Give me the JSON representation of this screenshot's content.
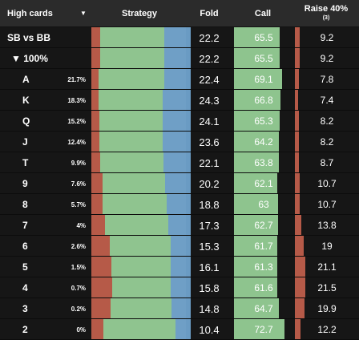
{
  "header": {
    "col1": "High cards",
    "col1_icon": "chevron-down-icon",
    "col2": "Strategy",
    "col3": "Fold",
    "col4": "Call",
    "col5": "Raise 40%",
    "col5_sub": "(3)"
  },
  "colors": {
    "raise": "#b65a48",
    "call": "#8fc48f",
    "fold": "#6f9fc6",
    "header_bg": "#2b2b2b",
    "page_bg": "#161616"
  },
  "summary_rows": [
    {
      "label": "SB vs BB",
      "fold": "22.2",
      "call": "65.5",
      "raise": "9.2"
    },
    {
      "label": "▼ 100%",
      "fold": "22.2",
      "call": "65.5",
      "raise": "9.2"
    }
  ],
  "rows": [
    {
      "card": "A",
      "pct": "21.7%",
      "fold": "22.4",
      "call": "69.1",
      "raise": "7.8"
    },
    {
      "card": "K",
      "pct": "18.3%",
      "fold": "24.3",
      "call": "66.8",
      "raise": "7.4"
    },
    {
      "card": "Q",
      "pct": "15.2%",
      "fold": "24.1",
      "call": "65.3",
      "raise": "8.2"
    },
    {
      "card": "J",
      "pct": "12.4%",
      "fold": "23.6",
      "call": "64.2",
      "raise": "8.2"
    },
    {
      "card": "T",
      "pct": "9.9%",
      "fold": "22.1",
      "call": "63.8",
      "raise": "8.7"
    },
    {
      "card": "9",
      "pct": "7.6%",
      "fold": "20.2",
      "call": "62.1",
      "raise": "10.7"
    },
    {
      "card": "8",
      "pct": "5.7%",
      "fold": "18.8",
      "call": "63",
      "raise": "10.7"
    },
    {
      "card": "7",
      "pct": "4%",
      "fold": "17.3",
      "call": "62.7",
      "raise": "13.8"
    },
    {
      "card": "6",
      "pct": "2.6%",
      "fold": "15.3",
      "call": "61.7",
      "raise": "19"
    },
    {
      "card": "5",
      "pct": "1.5%",
      "fold": "16.1",
      "call": "61.3",
      "raise": "21.1"
    },
    {
      "card": "4",
      "pct": "0.7%",
      "fold": "15.8",
      "call": "61.6",
      "raise": "21.5"
    },
    {
      "card": "3",
      "pct": "0.2%",
      "fold": "14.8",
      "call": "64.7",
      "raise": "19.9"
    },
    {
      "card": "2",
      "pct": "0%",
      "fold": "10.4",
      "call": "72.7",
      "raise": "12.2"
    }
  ]
}
